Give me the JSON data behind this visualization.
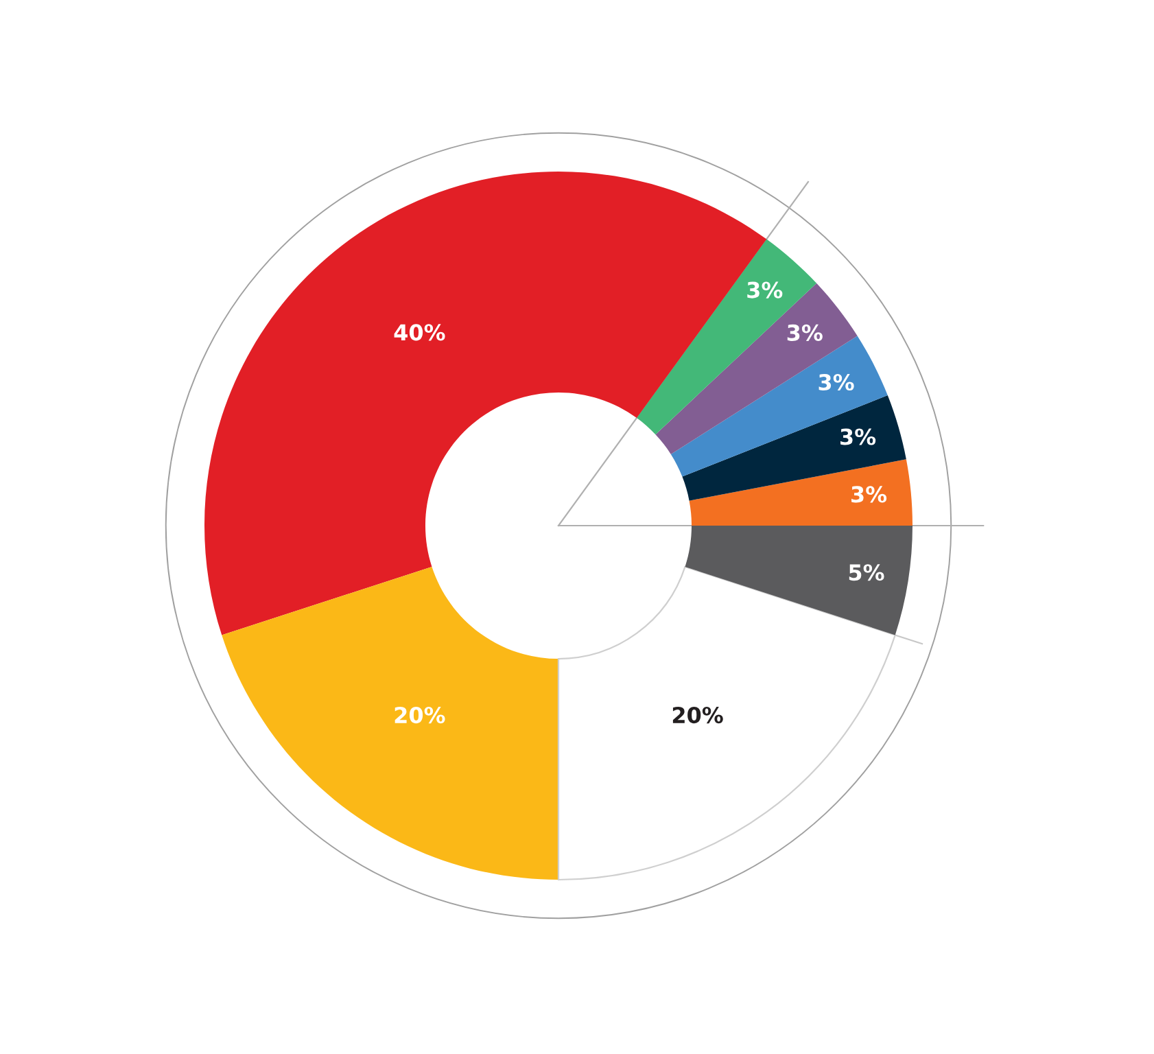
{
  "chart_data": {
    "type": "donut",
    "categories": [
      null,
      null,
      null,
      null,
      null,
      null,
      null,
      null,
      null
    ],
    "values": [
      3,
      3,
      3,
      3,
      3,
      40,
      20,
      20,
      5
    ],
    "colors": [
      "#f37021",
      "#00263e",
      "#448ccb",
      "#825e93",
      "#43b878",
      "#e21f26",
      "#fbb817",
      "#ffffff",
      "#5b5b5d"
    ],
    "value_labels": [
      "3%",
      "3%",
      "3%",
      "3%",
      "3%",
      "40%",
      "20%",
      "20%",
      "5%"
    ],
    "legend": false
  }
}
